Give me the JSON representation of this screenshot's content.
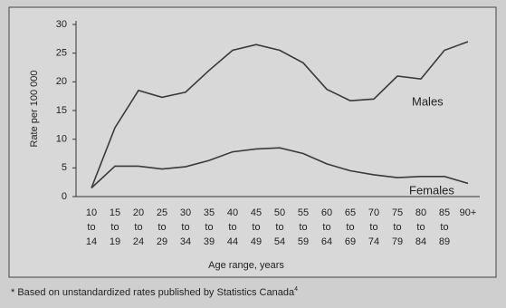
{
  "chart_data": {
    "type": "line",
    "y_label": "Rate per 100 000",
    "x_label": "Age range, years",
    "footnote": "* Based on unstandardized rates published by Statistics Canada",
    "footnote_ref": "4",
    "categories": [
      [
        "10",
        "to",
        "14"
      ],
      [
        "15",
        "to",
        "19"
      ],
      [
        "20",
        "to",
        "24"
      ],
      [
        "25",
        "to",
        "29"
      ],
      [
        "30",
        "to",
        "34"
      ],
      [
        "35",
        "to",
        "39"
      ],
      [
        "40",
        "to",
        "44"
      ],
      [
        "45",
        "to",
        "49"
      ],
      [
        "50",
        "to",
        "54"
      ],
      [
        "55",
        "to",
        "59"
      ],
      [
        "60",
        "to",
        "64"
      ],
      [
        "65",
        "to",
        "69"
      ],
      [
        "70",
        "to",
        "74"
      ],
      [
        "75",
        "to",
        "79"
      ],
      [
        "80",
        "to",
        "84"
      ],
      [
        "85",
        "to",
        "89"
      ],
      [
        "90+"
      ]
    ],
    "series": [
      {
        "name": "Males",
        "color": "#3a3a3a",
        "values": [
          1.5,
          12,
          18.5,
          17.3,
          18.2,
          22,
          25.5,
          26.5,
          25.5,
          23.3,
          18.7,
          16.7,
          17,
          21,
          20.5,
          25.5,
          27
        ]
      },
      {
        "name": "Females",
        "color": "#3a3a3a",
        "values": [
          1.5,
          5.3,
          5.3,
          4.8,
          5.2,
          6.3,
          7.8,
          8.3,
          8.5,
          7.5,
          5.7,
          4.5,
          3.8,
          3.3,
          3.5,
          3.5,
          2.3
        ]
      }
    ],
    "ylim": [
      0,
      30
    ],
    "yticks": [
      0,
      5,
      10,
      15,
      20,
      25,
      30
    ]
  }
}
